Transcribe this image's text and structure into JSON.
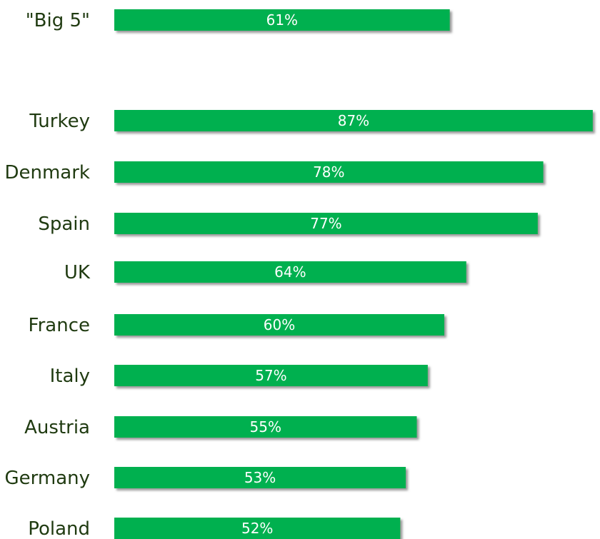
{
  "chart_data": {
    "type": "bar",
    "orientation": "horizontal",
    "categories": [
      "\"Big 5\"",
      "Turkey",
      "Denmark",
      "Spain",
      "UK",
      "France",
      "Italy",
      "Austria",
      "Germany",
      "Poland"
    ],
    "values": [
      61,
      87,
      78,
      77,
      64,
      60,
      57,
      55,
      53,
      52
    ],
    "data_labels": [
      "61%",
      "87%",
      "78%",
      "77%",
      "64%",
      "60%",
      "57%",
      "55%",
      "53%",
      "52%"
    ],
    "title": "",
    "xlabel": "",
    "ylabel": "",
    "xlim": [
      0,
      87
    ],
    "grid": false,
    "legend": "none",
    "colors": {
      "bar": "#00b050",
      "bar_shadow": "#8a8a8a",
      "category_text": "#1f3a10",
      "value_text": "#ffffff"
    }
  }
}
